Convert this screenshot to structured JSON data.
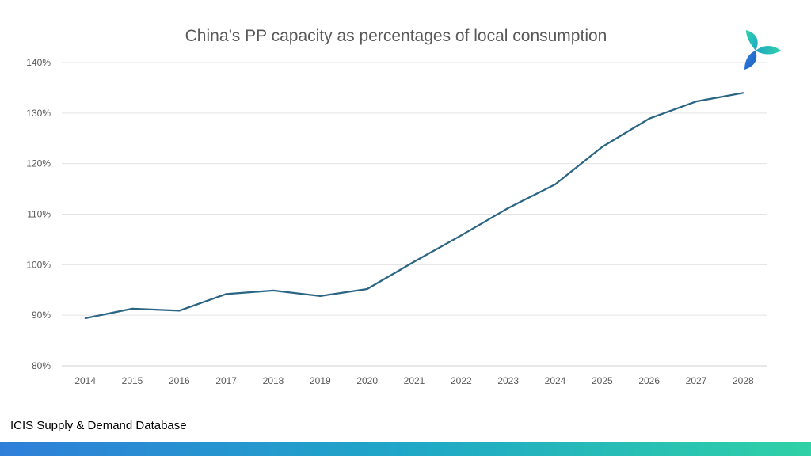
{
  "title": "China’s PP capacity as percentages of local consumption",
  "source": "ICIS Supply & Demand Database",
  "logo_icon": "icis-logo-icon",
  "colors": {
    "line": "#2a6583",
    "grid": "#e3e3e3",
    "axis_text": "#595959",
    "footer_start": "#2f7fd9",
    "footer_end": "#2fd1a6"
  },
  "chart_data": {
    "type": "line",
    "title": "China’s PP capacity as percentages of local consumption",
    "xlabel": "",
    "ylabel": "",
    "x": [
      "2014",
      "2015",
      "2016",
      "2017",
      "2018",
      "2019",
      "2020",
      "2021",
      "2022",
      "2023",
      "2024",
      "2025",
      "2026",
      "2027",
      "2028"
    ],
    "series": [
      {
        "values": [
          89.4,
          91.3,
          90.9,
          94.2,
          94.9,
          93.8,
          95.2,
          100.6,
          105.8,
          111.2,
          115.9,
          123.3,
          128.9,
          132.3,
          134.0
        ]
      }
    ],
    "ylim": [
      80,
      140
    ],
    "yticks": [
      80,
      90,
      100,
      110,
      120,
      130,
      140
    ],
    "ytick_labels": [
      "80%",
      "90%",
      "100%",
      "110%",
      "120%",
      "130%",
      "140%"
    ],
    "grid": true,
    "legend": "none"
  }
}
